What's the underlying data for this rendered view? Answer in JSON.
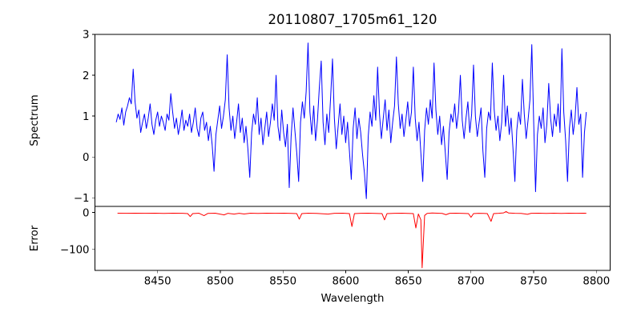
{
  "chart_data": {
    "type": "line",
    "title": "20110807_1705m61_120",
    "xlabel": "Wavelength",
    "xlim": [
      8400,
      8811
    ],
    "xticks": [
      8450,
      8500,
      8550,
      8600,
      8650,
      8700,
      8750,
      8800
    ],
    "grid": false,
    "legend": null,
    "panels": [
      {
        "name": "spectrum",
        "ylabel": "Spectrum",
        "ylim": [
          -1.21,
          3.0
        ],
        "yticks": [
          -1,
          0,
          1,
          2,
          3
        ],
        "series": {
          "name": "spectrum",
          "color": "#0000ff",
          "x_start": 8417,
          "x_step": 1.5,
          "values": [
            0.85,
            1.05,
            0.92,
            1.2,
            0.78,
            1.1,
            1.25,
            1.45,
            1.3,
            2.15,
            1.35,
            0.95,
            1.15,
            0.6,
            0.85,
            1.05,
            0.7,
            0.95,
            1.3,
            0.8,
            0.55,
            0.9,
            1.1,
            0.75,
            1.0,
            0.85,
            0.65,
            1.05,
            0.9,
            1.55,
            1.1,
            0.7,
            0.95,
            0.55,
            0.8,
            1.15,
            0.65,
            0.9,
            0.75,
            1.05,
            0.6,
            0.85,
            1.2,
            0.7,
            0.5,
            0.95,
            1.1,
            0.65,
            0.85,
            0.4,
            0.75,
            0.3,
            -0.35,
            0.55,
            0.9,
            1.25,
            0.7,
            1.0,
            1.4,
            2.5,
            1.2,
            0.65,
            1.0,
            0.45,
            0.85,
            1.3,
            0.6,
            0.95,
            0.35,
            0.75,
            0.2,
            -0.5,
            0.6,
            1.05,
            0.8,
            1.45,
            0.55,
            0.95,
            0.3,
            0.7,
            1.1,
            0.5,
            0.85,
            1.3,
            0.9,
            2.0,
            0.75,
            0.4,
            1.15,
            0.6,
            0.25,
            0.8,
            -0.75,
            0.5,
            1.2,
            0.65,
            0.1,
            -0.6,
            0.85,
            1.35,
            0.95,
            1.6,
            2.79,
            1.1,
            0.55,
            1.25,
            0.4,
            0.9,
            1.7,
            2.35,
            0.85,
            0.3,
            1.05,
            0.6,
            1.45,
            2.4,
            0.95,
            0.2,
            0.75,
            1.3,
            0.55,
            1.0,
            0.35,
            0.85,
            0.15,
            -0.55,
            0.7,
            1.2,
            0.45,
            0.95,
            0.6,
            0.05,
            -0.4,
            -1.02,
            0.5,
            1.1,
            0.75,
            1.5,
            0.9,
            2.2,
            1.05,
            0.45,
            0.95,
            1.4,
            0.65,
            1.15,
            0.35,
            0.85,
            1.25,
            2.45,
            1.3,
            0.7,
            1.05,
            0.5,
            0.9,
            1.35,
            0.75,
            1.1,
            2.2,
            0.95,
            0.4,
            0.85,
            0.1,
            -0.6,
            0.65,
            1.2,
            0.8,
            1.4,
            0.95,
            2.3,
            1.15,
            0.55,
            1.0,
            0.3,
            0.75,
            0.1,
            -0.55,
            0.6,
            1.05,
            0.85,
            1.3,
            0.7,
            1.1,
            2.0,
            0.9,
            0.45,
            0.95,
            1.35,
            0.6,
            1.05,
            2.25,
            1.0,
            0.5,
            0.85,
            1.2,
            0.15,
            -0.5,
            0.7,
            1.1,
            0.9,
            2.3,
            1.15,
            0.65,
            1.0,
            0.4,
            0.85,
            2.0,
            0.75,
            1.25,
            0.55,
            0.95,
            0.2,
            -0.6,
            0.65,
            1.1,
            0.8,
            1.9,
            1.05,
            0.45,
            0.9,
            1.4,
            2.75,
            0.85,
            -0.85,
            0.55,
            1.0,
            0.7,
            1.2,
            0.35,
            0.8,
            1.8,
            0.95,
            0.5,
            1.05,
            0.75,
            1.3,
            0.6,
            2.65,
            1.1,
            0.4,
            -0.6,
            0.7,
            1.15,
            0.55,
            0.95,
            1.7,
            0.8,
            1.05,
            -0.5,
            0.6,
            1.1
          ]
        }
      },
      {
        "name": "error",
        "ylabel": "Error",
        "ylim": [
          -157,
          16.5
        ],
        "yticks": [
          -100,
          0
        ],
        "series": {
          "name": "error",
          "color": "#ff0000",
          "points": [
            [
              8418,
              -2
            ],
            [
              8425,
              -2.3
            ],
            [
              8432,
              -1.8
            ],
            [
              8440,
              -2.2
            ],
            [
              8448,
              -2
            ],
            [
              8455,
              -2.4
            ],
            [
              8462,
              -2
            ],
            [
              8470,
              -2.2
            ],
            [
              8474,
              -3
            ],
            [
              8476,
              -11
            ],
            [
              8478,
              -3
            ],
            [
              8483,
              -2
            ],
            [
              8487,
              -8.5
            ],
            [
              8490,
              -2.5
            ],
            [
              8496,
              -2
            ],
            [
              8503,
              -6.5
            ],
            [
              8506,
              -2.3
            ],
            [
              8511,
              -4.5
            ],
            [
              8515,
              -2.2
            ],
            [
              8519,
              -4
            ],
            [
              8524,
              -2
            ],
            [
              8530,
              -2.6
            ],
            [
              8537,
              -2
            ],
            [
              8544,
              -2.3
            ],
            [
              8551,
              -2
            ],
            [
              8557,
              -2.5
            ],
            [
              8561,
              -3
            ],
            [
              8563,
              -18
            ],
            [
              8565,
              -3
            ],
            [
              8570,
              -2
            ],
            [
              8577,
              -2.4
            ],
            [
              8582,
              -3.5
            ],
            [
              8586,
              -4.5
            ],
            [
              8591,
              -2.2
            ],
            [
              8598,
              -2
            ],
            [
              8603,
              -3
            ],
            [
              8605,
              -38
            ],
            [
              8607,
              -3
            ],
            [
              8612,
              -2.2
            ],
            [
              8618,
              -2
            ],
            [
              8624,
              -2.5
            ],
            [
              8629,
              -3
            ],
            [
              8631,
              -20
            ],
            [
              8633,
              -3
            ],
            [
              8639,
              -2.2
            ],
            [
              8645,
              -2
            ],
            [
              8650,
              -2.5
            ],
            [
              8654,
              -3
            ],
            [
              8656,
              -42
            ],
            [
              8658,
              -4
            ],
            [
              8660,
              -20
            ],
            [
              8661,
              -150
            ],
            [
              8663,
              -8
            ],
            [
              8665,
              -2.5
            ],
            [
              8669,
              -1.5
            ],
            [
              8673,
              -2
            ],
            [
              8677,
              -2.5
            ],
            [
              8680,
              -6
            ],
            [
              8683,
              -2.2
            ],
            [
              8688,
              -2
            ],
            [
              8694,
              -2.4
            ],
            [
              8698,
              -3
            ],
            [
              8700,
              -13
            ],
            [
              8702,
              -3
            ],
            [
              8706,
              -2.2
            ],
            [
              8710,
              -2.6
            ],
            [
              8713,
              -3
            ],
            [
              8716,
              -24
            ],
            [
              8718,
              -3
            ],
            [
              8722,
              -2.2
            ],
            [
              8726,
              -1
            ],
            [
              8728,
              2.5
            ],
            [
              8730,
              -1.5
            ],
            [
              8735,
              -2.2
            ],
            [
              8740,
              -2.5
            ],
            [
              8745,
              -5
            ],
            [
              8748,
              -2.3
            ],
            [
              8754,
              -2
            ],
            [
              8760,
              -2.4
            ],
            [
              8766,
              -2
            ],
            [
              8772,
              -2.6
            ],
            [
              8778,
              -2
            ],
            [
              8784,
              -2.3
            ],
            [
              8790,
              -2
            ],
            [
              8792,
              -2.1
            ]
          ]
        }
      }
    ]
  }
}
